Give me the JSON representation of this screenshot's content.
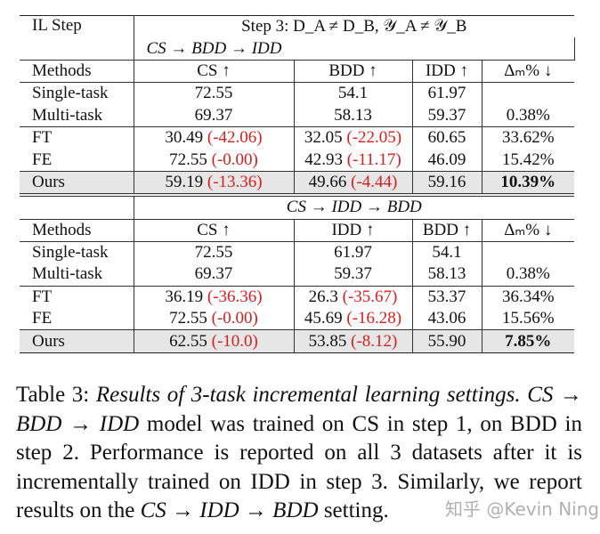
{
  "table": {
    "step_header": "IL Step",
    "blocks": [
      {
        "title": "Step 3: D_A ≠ D_B, 𝒴_A ≠ 𝒴_B",
        "order": "CS → BDD → IDD",
        "columns": [
          "Methods",
          "CS ↑",
          "BDD ↑",
          "IDD ↑",
          "Δₘ% ↓"
        ],
        "groups": [
          [
            {
              "cells": [
                "Single-task",
                "72.55",
                "54.1",
                "61.97",
                null
              ]
            },
            {
              "cells": [
                "Multi-task",
                "69.37",
                "58.13",
                "59.37",
                "0.38%"
              ]
            }
          ],
          [
            {
              "cells": [
                "FT",
                {
                  "value": "30.49",
                  "delta": "(-42.06)"
                },
                {
                  "value": "32.05",
                  "delta": "(-22.05)"
                },
                "60.65",
                "33.62%"
              ]
            },
            {
              "cells": [
                "FE",
                {
                  "value": "72.55",
                  "delta": "(-0.00)"
                },
                {
                  "value": "42.93",
                  "delta": "(-11.17)"
                },
                "46.09",
                "15.42%"
              ]
            }
          ],
          [
            {
              "cells": [
                "Ours",
                {
                  "value": "59.19",
                  "delta": "(-13.36)"
                },
                {
                  "value": "49.66",
                  "delta": "(-4.44)"
                },
                "59.16",
                "10.39%"
              ],
              "highlight": true
            }
          ]
        ]
      },
      {
        "order": "CS → IDD → BDD",
        "columns": [
          "Methods",
          "CS ↑",
          "IDD ↑",
          "BDD ↑",
          "Δₘ% ↓"
        ],
        "groups": [
          [
            {
              "cells": [
                "Single-task",
                "72.55",
                "61.97",
                "54.1",
                null
              ]
            },
            {
              "cells": [
                "Multi-task",
                "69.37",
                "59.37",
                "58.13",
                "0.38%"
              ]
            }
          ],
          [
            {
              "cells": [
                "FT",
                {
                  "value": "36.19",
                  "delta": "(-36.36)"
                },
                {
                  "value": "26.3",
                  "delta": "(-35.67)"
                },
                "53.37",
                "36.34%"
              ]
            },
            {
              "cells": [
                "FE",
                {
                  "value": "72.55",
                  "delta": "(-0.00)"
                },
                {
                  "value": "45.69",
                  "delta": "(-16.28)"
                },
                "43.06",
                "15.56%"
              ]
            }
          ],
          [
            {
              "cells": [
                "Ours",
                {
                  "value": "62.55",
                  "delta": "(-10.0)"
                },
                {
                  "value": "53.85",
                  "delta": "(-8.12)"
                },
                "55.90",
                "7.85%"
              ],
              "highlight": true
            }
          ]
        ]
      }
    ]
  },
  "caption": {
    "label": "Table 3:",
    "title": "Results of 3-task incremental learning settings.",
    "segments": [
      {
        "text": "CS → BDD → IDD",
        "math": true
      },
      {
        "text": " model was trained on CS in step 1, on BDD in step 2. Performance is reported on all 3 datasets after it is incrementally trained on IDD in step 3. Similarly, we report results on the "
      },
      {
        "text": "CS → IDD → BDD",
        "math": true
      },
      {
        "text": " setting."
      }
    ]
  },
  "watermark": "知乎 @Kevin Ning"
}
